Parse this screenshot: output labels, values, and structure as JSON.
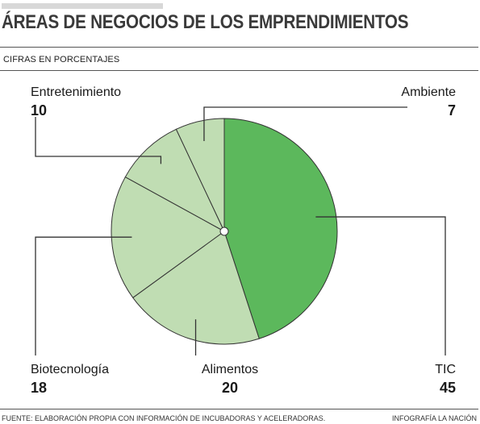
{
  "header": {
    "title": "ÁREAS DE NEGOCIOS DE LOS EMPRENDIMIENTOS",
    "subtitle": "CIFRAS EN PORCENTAJES"
  },
  "footer": {
    "source": "FUENTE: ELABORACIÓN PROPIA CON INFORMACIÓN DE INCUBADORAS Y ACELERADORAS.",
    "credit": "INFOGRAFÍA LA NACIÓN"
  },
  "colors": {
    "highlight": "#5cb85c",
    "light": "#c0ddb3",
    "stroke": "#333333"
  },
  "chart_data": {
    "type": "pie",
    "title": "ÁREAS DE NEGOCIOS DE LOS EMPRENDIMIENTOS",
    "subtitle": "CIFRAS EN PORCENTAJES",
    "unit": "%",
    "slices": [
      {
        "label": "TIC",
        "value": 45,
        "highlight": true
      },
      {
        "label": "Alimentos",
        "value": 20,
        "highlight": false
      },
      {
        "label": "Biotecnología",
        "value": 18,
        "highlight": false
      },
      {
        "label": "Entretenimiento",
        "value": 10,
        "highlight": false
      },
      {
        "label": "Ambiente",
        "value": 7,
        "highlight": false
      }
    ]
  }
}
